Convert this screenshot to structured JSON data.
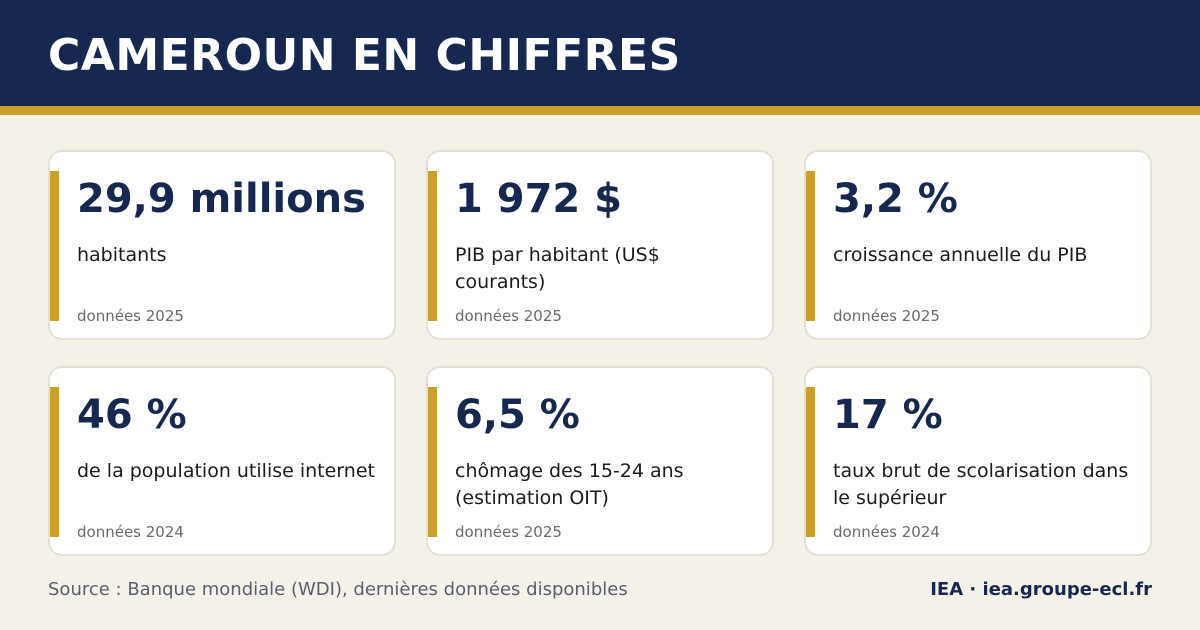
{
  "header": {
    "title": "CAMEROUN EN CHIFFRES"
  },
  "cards": [
    {
      "value": "29,9 millions",
      "label": "habitants",
      "year": "données 2025"
    },
    {
      "value": "1 972 $",
      "label": "PIB par habitant (US$ courants)",
      "year": "données 2025"
    },
    {
      "value": "3,2 %",
      "label": "croissance annuelle du PIB",
      "year": "données 2025"
    },
    {
      "value": "46 %",
      "label": "de la population utilise internet",
      "year": "données 2024"
    },
    {
      "value": "6,5 %",
      "label": "chômage des 15-24 ans (estimation OIT)",
      "year": "données 2025"
    },
    {
      "value": "17 %",
      "label": "taux brut de scolarisation dans le supérieur",
      "year": "données 2024"
    }
  ],
  "footer": {
    "source": "Source : Banque mondiale (WDI), dernières données disponibles",
    "brand": "IEA · iea.groupe-ecl.fr"
  },
  "colors": {
    "navy": "#16284f",
    "gold": "#c9a02c",
    "background": "#f4f1e8"
  }
}
